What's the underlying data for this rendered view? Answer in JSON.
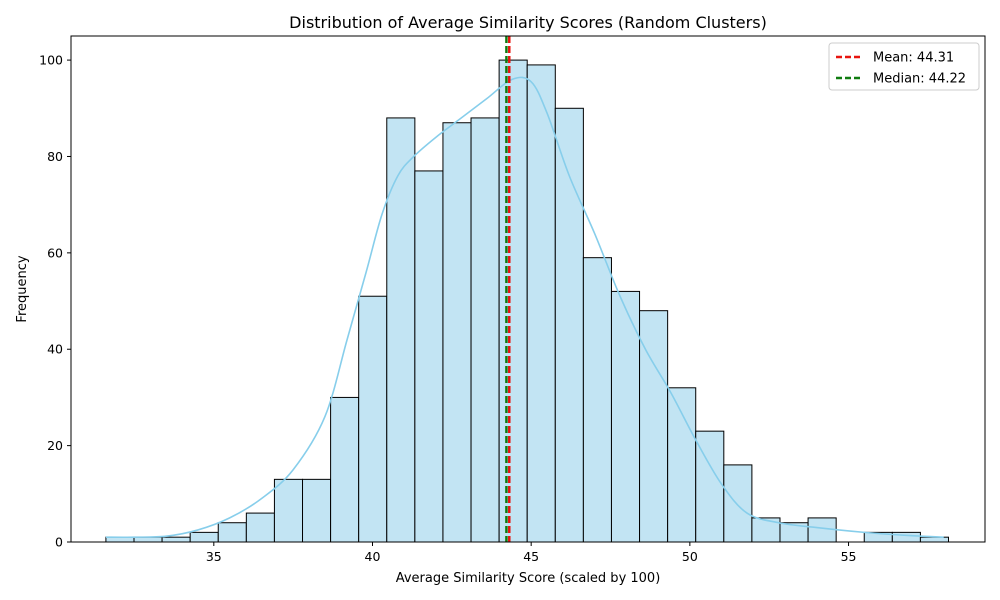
{
  "chart_data": {
    "type": "bar",
    "subtype": "histogram",
    "title": "Distribution of Average Similarity Scores (Random Clusters)",
    "xlabel": "Average Similarity Score (scaled by 100)",
    "ylabel": "Frequency",
    "xlim": [
      30.5,
      59.3
    ],
    "ylim": [
      0,
      105
    ],
    "xticks": [
      35,
      40,
      45,
      50,
      55
    ],
    "yticks": [
      0,
      20,
      40,
      60,
      80,
      100
    ],
    "bin_start": 31.6,
    "bin_width": 0.885,
    "counts": [
      1,
      1,
      1,
      2,
      4,
      6,
      13,
      13,
      30,
      51,
      88,
      77,
      87,
      88,
      100,
      99,
      90,
      59,
      52,
      48,
      32,
      23,
      16,
      5,
      4,
      5,
      0,
      2,
      2,
      1
    ],
    "bar_color": "#c2e4f3",
    "bar_edge_color": "#000000",
    "kde": {
      "color": "#87ceeb",
      "x": [
        31.6,
        32.5,
        33.5,
        34.5,
        35.5,
        36.5,
        37.5,
        38.5,
        39.2,
        39.8,
        40.3,
        40.8,
        41.3,
        42.0,
        42.8,
        43.6,
        44.4,
        45.0,
        45.5,
        46.2,
        47.0,
        47.8,
        48.6,
        49.4,
        50.2,
        51.0,
        51.8,
        52.8,
        54.0,
        55.5,
        57.0,
        58.0
      ],
      "y": [
        1,
        1,
        1.2,
        2.5,
        5,
        9,
        15,
        26,
        42,
        56,
        68,
        76,
        80,
        84,
        88,
        92,
        96,
        95.5,
        89,
        76,
        64,
        51,
        40,
        31,
        21,
        12,
        6,
        4,
        3,
        2,
        1.3,
        1
      ]
    },
    "vlines": [
      {
        "name": "Mean: 44.31",
        "x": 44.31,
        "color": "#e8140f",
        "style": "dashed"
      },
      {
        "name": "Median: 44.22",
        "x": 44.22,
        "color": "#107c10",
        "style": "dashed"
      }
    ],
    "legend_position": "top-right",
    "grid": false
  }
}
